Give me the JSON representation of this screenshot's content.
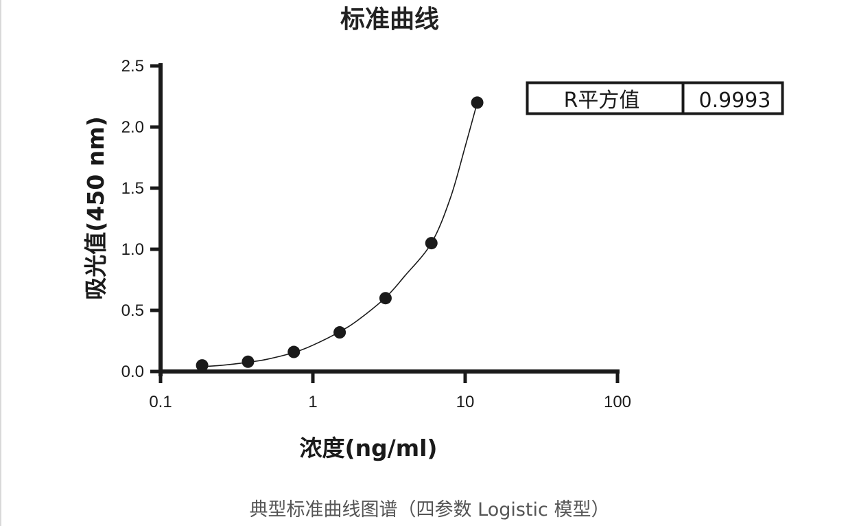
{
  "caption": "典型标准曲线图谱（四参数 Logistic 模型）",
  "chart_data": {
    "type": "scatter",
    "title": "标准曲线",
    "xlabel": "浓度(ng/ml)",
    "ylabel": "吸光值(450 nm)",
    "xscale": "log",
    "xlim": [
      0.1,
      100
    ],
    "ylim": [
      0,
      2.5
    ],
    "xticks": [
      0.1,
      1,
      10,
      100
    ],
    "xtick_labels": [
      "0.1",
      "1",
      "10",
      "100"
    ],
    "yticks": [
      0,
      0.5,
      1.0,
      1.5,
      2.0,
      2.5
    ],
    "ytick_labels": [
      "0.0",
      "0.5",
      "1.0",
      "1.5",
      "2.0",
      "2.5"
    ],
    "grid": false,
    "series": [
      {
        "x": [
          0.1875,
          0.375,
          0.75,
          1.5,
          3,
          6,
          12
        ],
        "y": [
          0.05,
          0.08,
          0.16,
          0.32,
          0.6,
          1.05,
          2.2
        ]
      }
    ],
    "fit": {
      "model": "4PL",
      "x": [
        0.1875,
        0.25,
        0.375,
        0.5,
        0.75,
        1,
        1.5,
        2,
        3,
        4,
        6,
        8,
        10,
        12
      ],
      "y": [
        0.04,
        0.05,
        0.075,
        0.1,
        0.155,
        0.215,
        0.325,
        0.425,
        0.605,
        0.78,
        1.05,
        1.42,
        1.84,
        2.2
      ]
    },
    "stats_table": {
      "label": "R平方值",
      "value": "0.9993"
    }
  },
  "colors": {
    "axis": "#1a1a1a",
    "points": "#1a1a1a",
    "curve": "#1a1a1a",
    "caption": "#555555"
  }
}
